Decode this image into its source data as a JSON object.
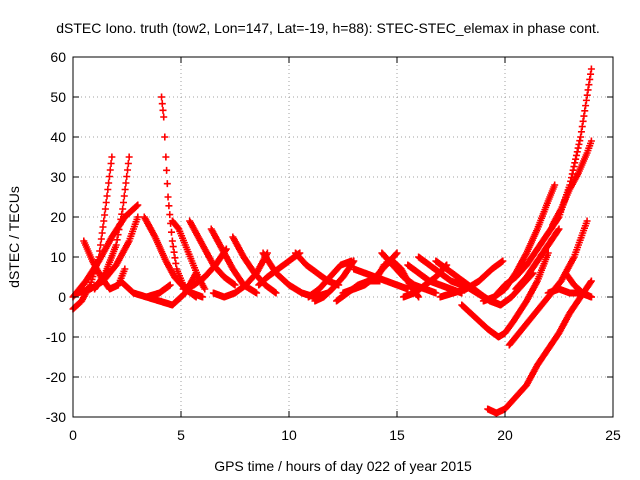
{
  "chart_data": {
    "type": "scatter",
    "title": "dSTEC Iono. truth (tow2, Lon=147, Lat=-19, h=88): STEC-STEC_elemax in phase cont.",
    "xlabel": "GPS time / hours of day 022 of year 2015",
    "ylabel": "dSTEC  / TECUs",
    "xlim": [
      0,
      25
    ],
    "ylim": [
      -30,
      60
    ],
    "xticks": [
      0,
      5,
      10,
      15,
      20,
      25
    ],
    "yticks": [
      -30,
      -20,
      -10,
      0,
      10,
      20,
      30,
      40,
      50,
      60
    ],
    "grid": true,
    "marker": "+",
    "color": "#ff0000",
    "series": [
      {
        "x": [
          0.0,
          0.4,
          0.8,
          1.2,
          1.5,
          1.8
        ],
        "y": [
          -3,
          -1,
          3,
          10,
          22,
          35
        ]
      },
      {
        "x": [
          0.5,
          0.9,
          1.3,
          1.7,
          2.1,
          2.4
        ],
        "y": [
          14,
          9,
          5,
          2,
          3,
          7
        ]
      },
      {
        "x": [
          1.0,
          1.5,
          2.0,
          2.3,
          2.6
        ],
        "y": [
          2,
          6,
          13,
          22,
          35
        ]
      },
      {
        "x": [
          0.0,
          0.6,
          1.2,
          1.8,
          2.4,
          3.0
        ],
        "y": [
          0,
          4,
          9,
          15,
          20,
          23
        ]
      },
      {
        "x": [
          2.2,
          2.8,
          3.4,
          4.0,
          4.5
        ],
        "y": [
          4,
          1,
          0,
          1,
          3
        ]
      },
      {
        "x": [
          0.2,
          0.8,
          1.4,
          2.0,
          2.6,
          3.0
        ],
        "y": [
          1,
          2,
          4,
          8,
          14,
          20
        ]
      },
      {
        "x": [
          3.3,
          3.8,
          4.3,
          4.7,
          5.2,
          5.7
        ],
        "y": [
          20,
          15,
          9,
          5,
          2,
          0
        ]
      },
      {
        "x": [
          4.1,
          4.2,
          4.3,
          4.4,
          4.6,
          4.8,
          5.1,
          5.5,
          6.0
        ],
        "y": [
          50,
          45,
          35,
          25,
          14,
          7,
          3,
          1,
          0
        ]
      },
      {
        "x": [
          4.6,
          4.9,
          5.2,
          5.5,
          5.8,
          6.1
        ],
        "y": [
          19,
          17,
          13,
          9,
          5,
          2
        ]
      },
      {
        "x": [
          3.4,
          4.0,
          4.6,
          5.2,
          5.7
        ],
        "y": [
          0,
          -1,
          -2,
          1,
          6
        ]
      },
      {
        "x": [
          5.1,
          5.6,
          6.1,
          6.6,
          7.1
        ],
        "y": [
          2,
          3,
          5,
          8,
          12
        ]
      },
      {
        "x": [
          5.4,
          6.0,
          6.5,
          7.0,
          7.5
        ],
        "y": [
          19,
          13,
          8,
          5,
          3
        ]
      },
      {
        "x": [
          6.4,
          6.9,
          7.4,
          7.9,
          8.5
        ],
        "y": [
          17,
          12,
          7,
          3,
          1
        ]
      },
      {
        "x": [
          7.4,
          7.9,
          8.4,
          8.9,
          9.4
        ],
        "y": [
          15,
          10,
          6,
          3,
          1
        ]
      },
      {
        "x": [
          6.5,
          7.0,
          7.5,
          8.0,
          8.5,
          9.0
        ],
        "y": [
          1,
          0,
          1,
          3,
          6,
          11
        ]
      },
      {
        "x": [
          8.6,
          9.0,
          9.5,
          10.0,
          10.5
        ],
        "y": [
          3,
          5,
          7,
          9,
          11
        ]
      },
      {
        "x": [
          8.8,
          9.4,
          10.0,
          10.6,
          11.2,
          11.8
        ],
        "y": [
          11,
          6,
          3,
          1,
          0,
          1
        ]
      },
      {
        "x": [
          10.3,
          10.8,
          11.3,
          11.8,
          12.3
        ],
        "y": [
          11,
          8,
          6,
          4,
          3
        ]
      },
      {
        "x": [
          10.9,
          11.4,
          11.9,
          12.4,
          12.9
        ],
        "y": [
          0,
          2,
          5,
          8,
          9
        ]
      },
      {
        "x": [
          11.2,
          11.6,
          12.0,
          12.5,
          13.0
        ],
        "y": [
          -1,
          0,
          2,
          5,
          9
        ]
      },
      {
        "x": [
          12.2,
          12.7,
          13.2,
          13.7,
          14.2
        ],
        "y": [
          -1,
          1,
          3,
          4,
          4
        ]
      },
      {
        "x": [
          12.5,
          13.0,
          13.5,
          14.0,
          14.5,
          15.0
        ],
        "y": [
          1,
          2,
          3,
          5,
          8,
          11
        ]
      },
      {
        "x": [
          13.0,
          13.5,
          14.0,
          14.5,
          15.0,
          15.5
        ],
        "y": [
          7,
          6,
          5,
          4,
          3,
          2
        ]
      },
      {
        "x": [
          14.0,
          14.4,
          14.8,
          15.2,
          15.6,
          16.0
        ],
        "y": [
          4,
          8,
          9,
          7,
          3,
          0
        ]
      },
      {
        "x": [
          14.3,
          14.8,
          15.3,
          15.8,
          16.3,
          16.8
        ],
        "y": [
          11,
          8,
          5,
          3,
          2,
          1
        ]
      },
      {
        "x": [
          15.3,
          15.8,
          16.3,
          16.8,
          17.3
        ],
        "y": [
          0,
          1,
          3,
          5,
          8
        ]
      },
      {
        "x": [
          15.5,
          16.0,
          16.5,
          17.0,
          17.5,
          18.0
        ],
        "y": [
          8,
          6,
          4,
          3,
          2,
          1
        ]
      },
      {
        "x": [
          16.0,
          16.5,
          17.0,
          17.5,
          18.0,
          18.5
        ],
        "y": [
          10,
          8,
          6,
          4,
          3,
          2
        ]
      },
      {
        "x": [
          16.8,
          17.3,
          17.8,
          18.3,
          18.8,
          19.3,
          19.8
        ],
        "y": [
          9,
          7,
          5,
          3,
          1,
          -1,
          -2
        ]
      },
      {
        "x": [
          17.0,
          17.6,
          18.2,
          18.8,
          19.4,
          19.9
        ],
        "y": [
          0,
          1,
          2,
          4,
          7,
          9
        ]
      },
      {
        "x": [
          17.8,
          18.4,
          19.0,
          19.4,
          19.8,
          20.3,
          20.8,
          21.3
        ],
        "y": [
          4,
          2,
          0,
          -1,
          -2,
          0,
          3,
          6
        ]
      },
      {
        "x": [
          18.0,
          18.6,
          19.2,
          19.7,
          20.0,
          20.4,
          21.0,
          21.5,
          22.0
        ],
        "y": [
          -2,
          -5,
          -8,
          -10,
          -9,
          -6,
          -1,
          4,
          11
        ]
      },
      {
        "x": [
          19.2,
          19.6,
          20.0,
          20.5,
          21.0,
          21.5,
          22.0,
          22.5,
          23.0,
          23.5,
          24.0
        ],
        "y": [
          -28,
          -29,
          -28,
          -25,
          -22,
          -17,
          -13,
          -9,
          -4,
          0,
          4
        ]
      },
      {
        "x": [
          19.5,
          20.0,
          20.5,
          21.0,
          21.5,
          22.0,
          22.5,
          23.0,
          23.5,
          24.0
        ],
        "y": [
          0,
          3,
          5,
          8,
          12,
          16,
          20,
          28,
          40,
          57
        ]
      },
      {
        "x": [
          19.0,
          19.5,
          20.0,
          20.5,
          21.0,
          21.5,
          22.0,
          22.3
        ],
        "y": [
          -1,
          0,
          2,
          6,
          11,
          17,
          24,
          28
        ]
      },
      {
        "x": [
          20.2,
          20.8,
          21.4,
          22.0,
          22.6,
          23.2,
          23.8
        ],
        "y": [
          -12,
          -8,
          -4,
          0,
          4,
          10,
          19
        ]
      },
      {
        "x": [
          22.2,
          22.6,
          23.0,
          23.4,
          23.8,
          24.0
        ],
        "y": [
          18,
          22,
          27,
          31,
          36,
          39
        ]
      },
      {
        "x": [
          22.0,
          22.5,
          23.0,
          23.5,
          24.0
        ],
        "y": [
          1,
          2,
          1,
          1,
          0
        ]
      },
      {
        "x": [
          20.5,
          21.0,
          21.5,
          22.0,
          22.5
        ],
        "y": [
          2,
          5,
          9,
          13,
          17
        ]
      },
      {
        "x": [
          22.8,
          23.2,
          23.6,
          24.0
        ],
        "y": [
          6,
          3,
          1,
          0
        ]
      }
    ]
  }
}
